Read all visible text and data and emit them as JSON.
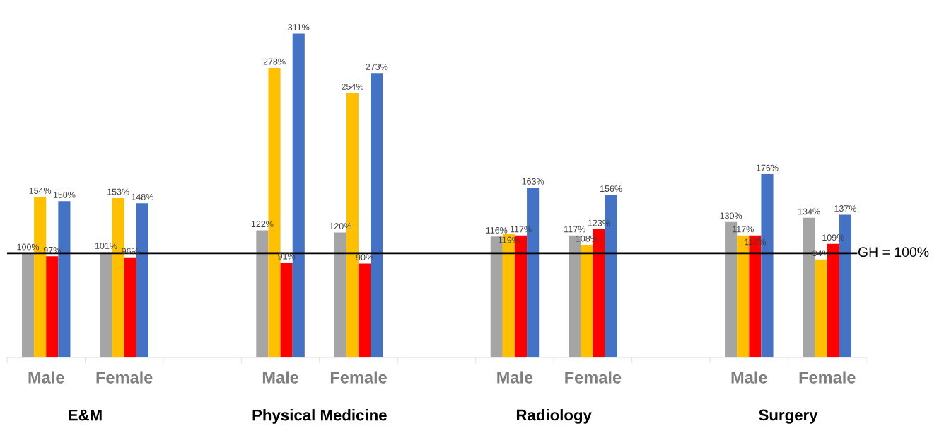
{
  "chart_data": {
    "type": "bar",
    "categories": [
      "Male",
      "Female",
      null,
      "Male",
      "Female",
      null,
      "Male",
      "Female",
      null,
      "Male",
      "Female"
    ],
    "series": [
      {
        "color": "#a5a5a5",
        "values": [
          100,
          101,
          null,
          122,
          120,
          null,
          116,
          117,
          null,
          130,
          134
        ],
        "value_labels": [
          "100%",
          "101%",
          null,
          "122%",
          "120%",
          null,
          "116%",
          "117%",
          null,
          "130%",
          "134%"
        ]
      },
      {
        "color": "#ffc000",
        "values": [
          154,
          153,
          null,
          278,
          254,
          null,
          119,
          108,
          null,
          117,
          94
        ],
        "value_labels": [
          "154%",
          "153%",
          null,
          "278%",
          "254%",
          null,
          "119%",
          "108%",
          null,
          "117%",
          "94%"
        ]
      },
      {
        "color": "#ff0000",
        "values": [
          97,
          96,
          null,
          91,
          90,
          null,
          117,
          123,
          null,
          117,
          109
        ],
        "value_labels": [
          "97%",
          "96%",
          null,
          "91%",
          "90%",
          null,
          "117%",
          "123%",
          null,
          "117%",
          "109%"
        ]
      },
      {
        "color": "#4472c4",
        "values": [
          150,
          148,
          null,
          311,
          273,
          null,
          163,
          156,
          null,
          176,
          137
        ],
        "value_labels": [
          "150%",
          "148%",
          null,
          "311%",
          "273%",
          null,
          "163%",
          "156%",
          null,
          "176%",
          "137%"
        ]
      }
    ],
    "ref_lines": [
      {
        "axis": "y",
        "value": 100,
        "label": "GH = 100%",
        "color": "#000000"
      }
    ],
    "annotations": [
      "E&M",
      "Physical Medicine",
      "Radiology",
      "Surgery"
    ],
    "grid": false,
    "legend": false
  }
}
